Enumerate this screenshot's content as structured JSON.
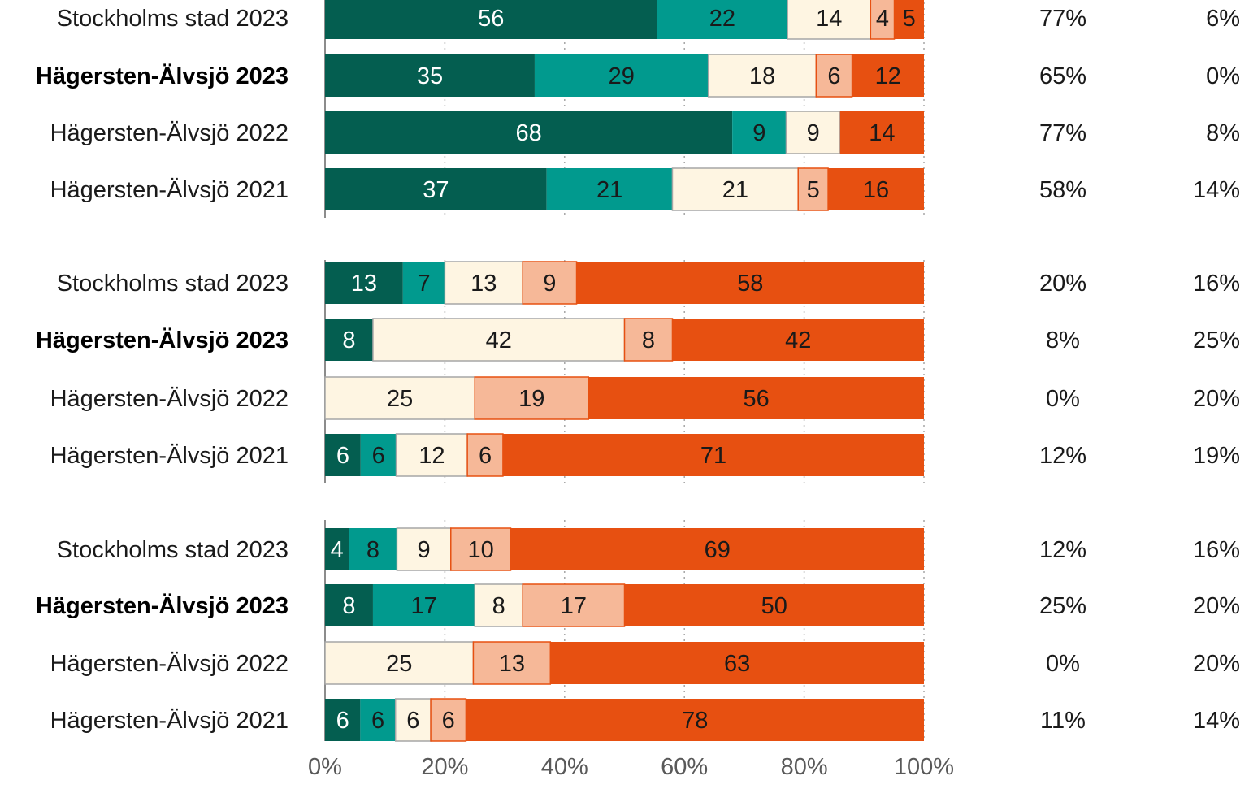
{
  "chart_data": {
    "type": "bar",
    "orientation": "horizontal",
    "stacked": true,
    "xlim": [
      0,
      100
    ],
    "x_ticks": [
      "0%",
      "20%",
      "40%",
      "60%",
      "80%",
      "100%"
    ],
    "grid": "vertical dotted",
    "colors": [
      "#045e50",
      "#019a8e",
      "#fef5e2",
      "#f6b898",
      "#e75011"
    ],
    "groups": [
      {
        "rows": [
          {
            "label": "Stockholms stad 2023",
            "bold": false,
            "values": [
              56,
              22,
              14,
              4,
              5
            ],
            "extra1": "77%",
            "extra2": "6%"
          },
          {
            "label": "Hägersten-Älvsjö 2023",
            "bold": true,
            "values": [
              35,
              29,
              18,
              6,
              12
            ],
            "extra1": "65%",
            "extra2": "0%"
          },
          {
            "label": "Hägersten-Älvsjö 2022",
            "bold": false,
            "values": [
              68,
              9,
              9,
              0,
              14
            ],
            "extra1": "77%",
            "extra2": "8%"
          },
          {
            "label": "Hägersten-Älvsjö 2021",
            "bold": false,
            "values": [
              37,
              21,
              21,
              5,
              16
            ],
            "extra1": "58%",
            "extra2": "14%"
          }
        ]
      },
      {
        "rows": [
          {
            "label": "Stockholms stad 2023",
            "bold": false,
            "values": [
              13,
              7,
              13,
              9,
              58
            ],
            "extra1": "20%",
            "extra2": "16%"
          },
          {
            "label": "Hägersten-Älvsjö 2023",
            "bold": true,
            "values": [
              8,
              0,
              42,
              8,
              42
            ],
            "extra1": "8%",
            "extra2": "25%"
          },
          {
            "label": "Hägersten-Älvsjö 2022",
            "bold": false,
            "values": [
              0,
              0,
              25,
              19,
              56
            ],
            "extra1": "0%",
            "extra2": "20%"
          },
          {
            "label": "Hägersten-Älvsjö 2021",
            "bold": false,
            "values": [
              6,
              6,
              12,
              6,
              71
            ],
            "extra1": "12%",
            "extra2": "19%"
          }
        ]
      },
      {
        "rows": [
          {
            "label": "Stockholms stad 2023",
            "bold": false,
            "values": [
              4,
              8,
              9,
              10,
              69
            ],
            "extra1": "12%",
            "extra2": "16%"
          },
          {
            "label": "Hägersten-Älvsjö 2023",
            "bold": true,
            "values": [
              8,
              17,
              8,
              17,
              50
            ],
            "extra1": "25%",
            "extra2": "20%"
          },
          {
            "label": "Hägersten-Älvsjö 2022",
            "bold": false,
            "values": [
              0,
              0,
              25,
              13,
              63
            ],
            "extra1": "0%",
            "extra2": "20%"
          },
          {
            "label": "Hägersten-Älvsjö 2021",
            "bold": false,
            "values": [
              6,
              6,
              6,
              6,
              78
            ],
            "extra1": "11%",
            "extra2": "14%"
          }
        ]
      }
    ]
  }
}
